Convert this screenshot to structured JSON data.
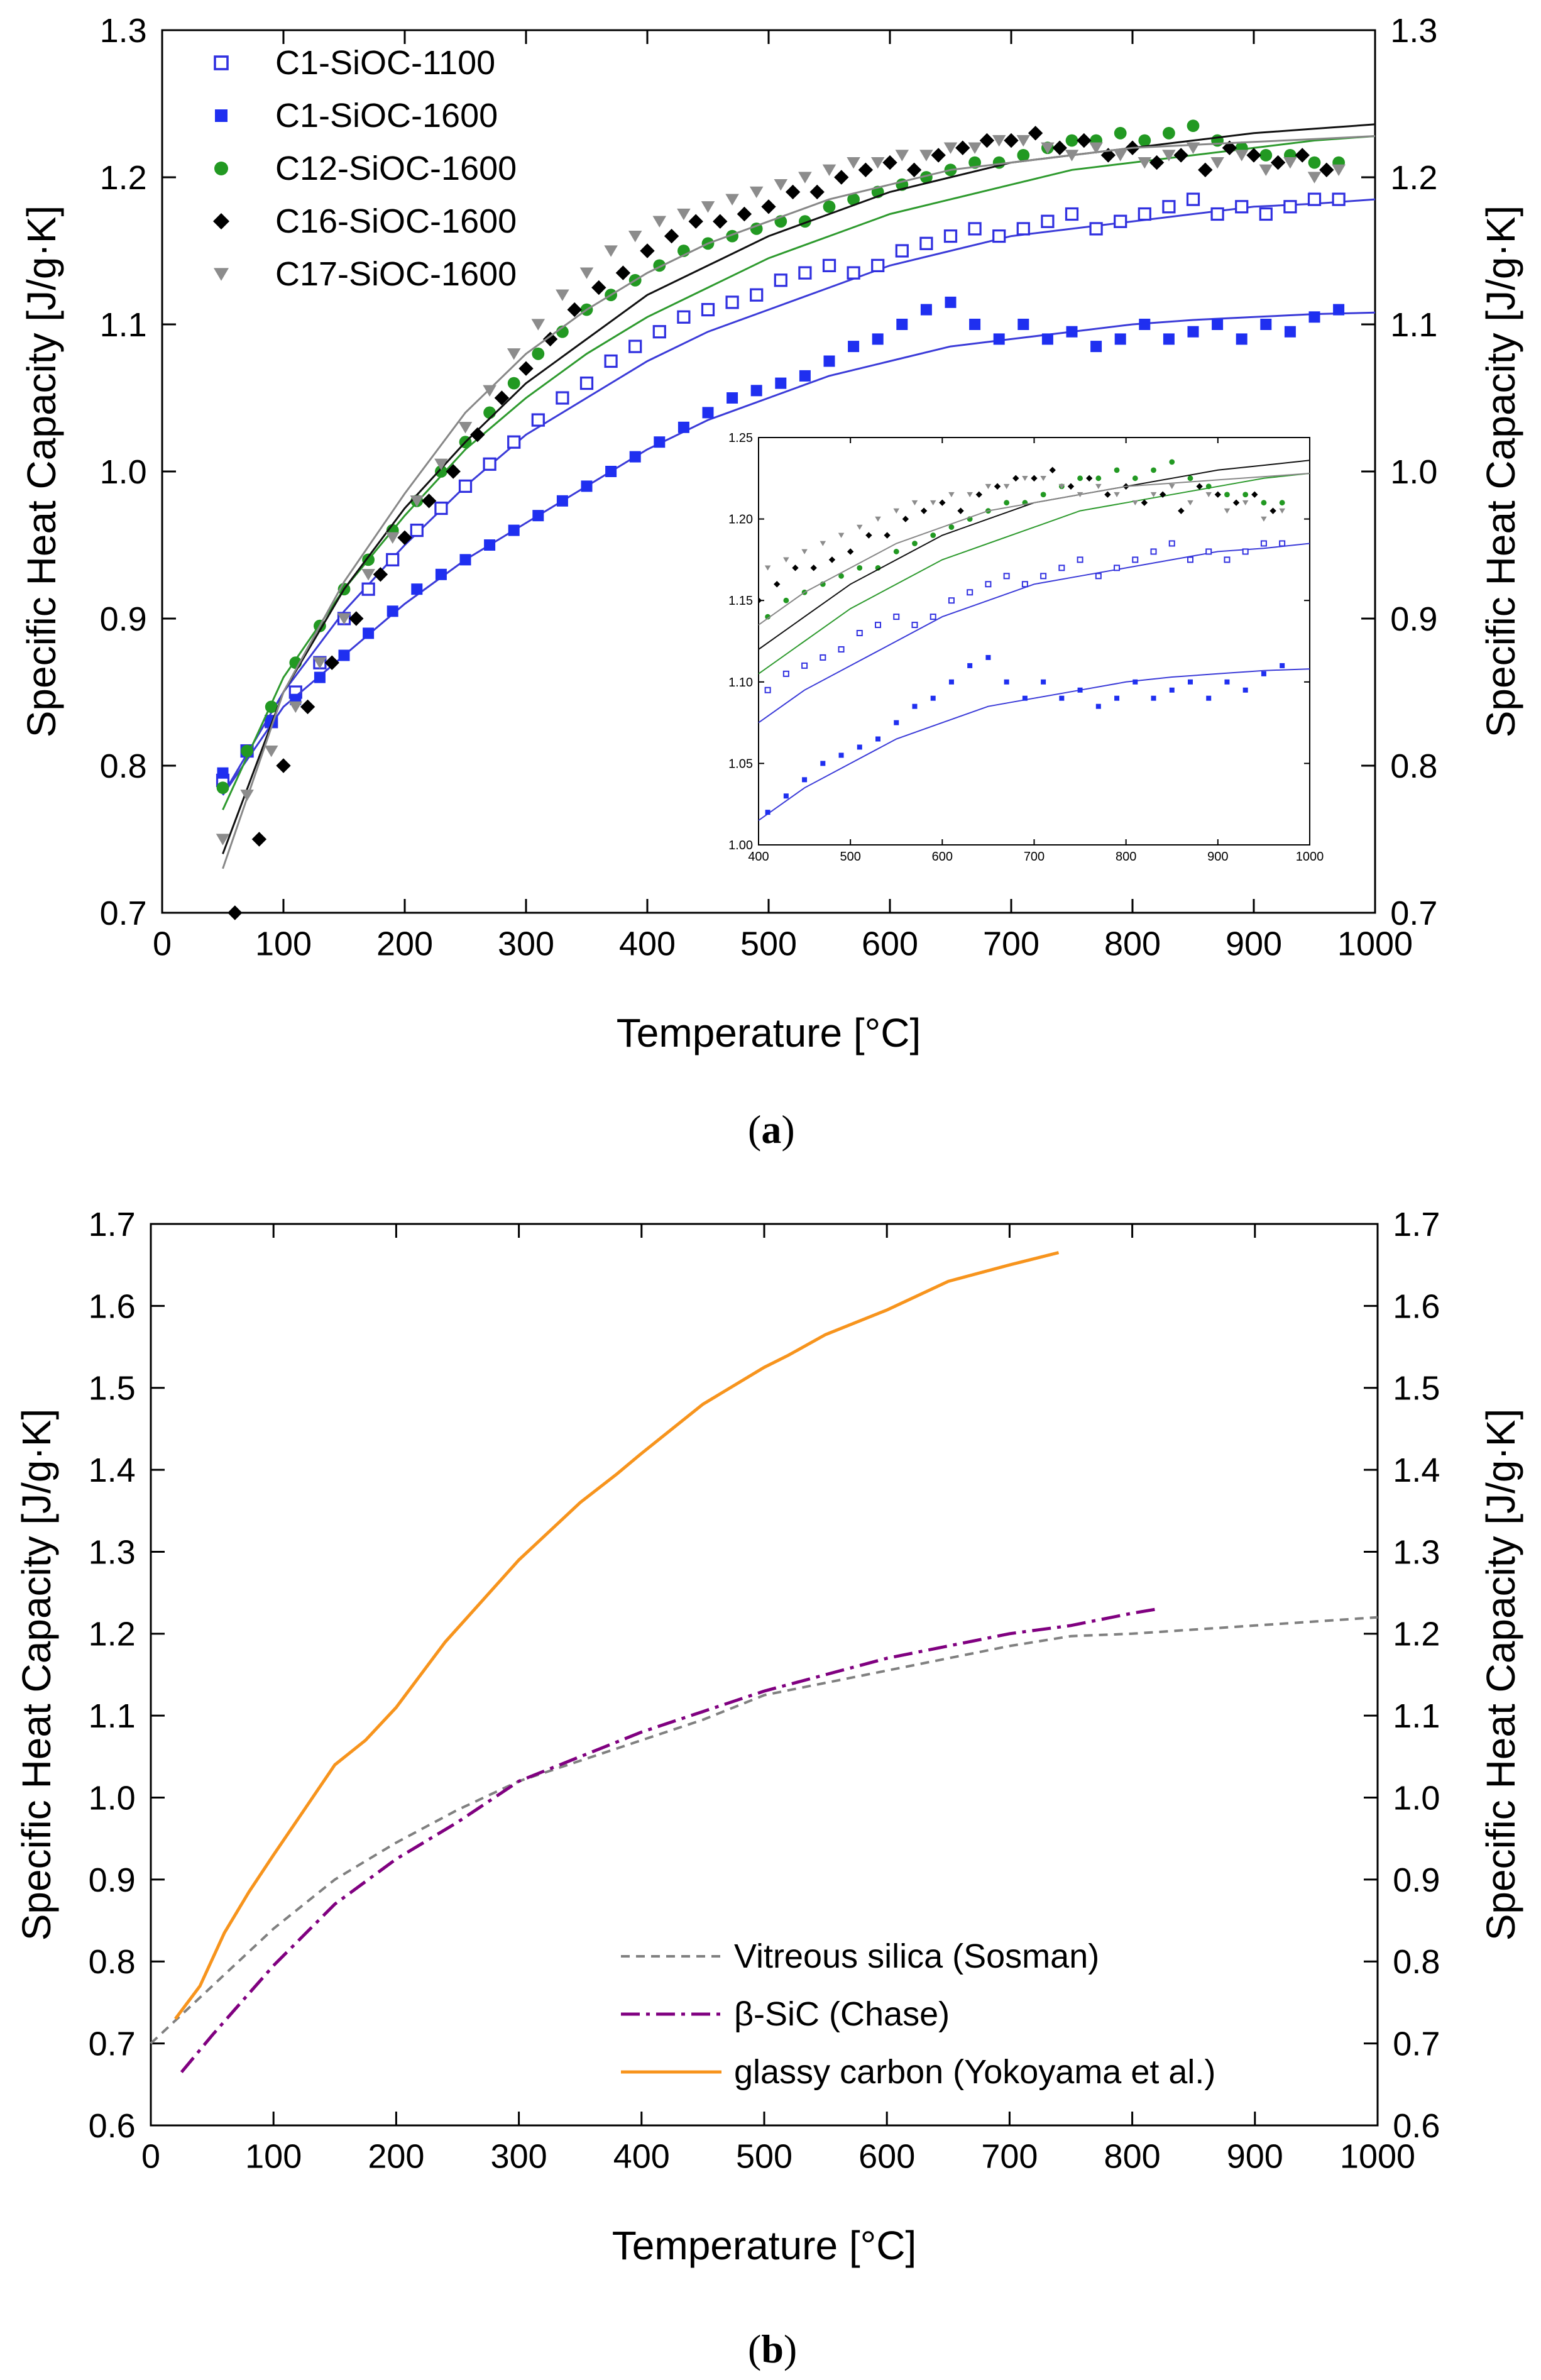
{
  "captions": {
    "a": "a",
    "b": "b"
  },
  "chart_data": [
    {
      "id": "a",
      "type": "scatter",
      "xlabel": "Temperature [°C]",
      "ylabel": "Specific Heat Capacity [J/g·K]",
      "xlim": [
        0,
        1000
      ],
      "ylim": [
        0.7,
        1.3
      ],
      "xticks": [
        0,
        100,
        200,
        300,
        400,
        500,
        600,
        700,
        800,
        900,
        1000
      ],
      "yticks": [
        0.7,
        0.8,
        0.9,
        1.0,
        1.1,
        1.2,
        1.3
      ],
      "ytick_labels": [
        "0.7",
        "0.8",
        "0.9",
        "1.0",
        "1.1",
        "1.2",
        "1.3"
      ],
      "legend_position": "top-left",
      "series": [
        {
          "name": "C1-SiOC-1100",
          "marker": "open-square",
          "color": "#3030e0",
          "fit_color": "#3b3bd8",
          "x": [
            50,
            70,
            90,
            110,
            130,
            150,
            170,
            190,
            210,
            230,
            250,
            270,
            290,
            310,
            330,
            350,
            370,
            390,
            410,
            430,
            450,
            470,
            490,
            510,
            530,
            550,
            570,
            590,
            610,
            630,
            650,
            670,
            690,
            710,
            730,
            750,
            770,
            790,
            810,
            830,
            850,
            870,
            890,
            910,
            930,
            950,
            970
          ],
          "y": [
            0.79,
            0.81,
            0.83,
            0.85,
            0.87,
            0.9,
            0.92,
            0.94,
            0.96,
            0.975,
            0.99,
            1.005,
            1.02,
            1.035,
            1.05,
            1.06,
            1.075,
            1.085,
            1.095,
            1.105,
            1.11,
            1.115,
            1.12,
            1.13,
            1.135,
            1.14,
            1.135,
            1.14,
            1.15,
            1.155,
            1.16,
            1.165,
            1.16,
            1.165,
            1.17,
            1.175,
            1.165,
            1.17,
            1.175,
            1.18,
            1.185,
            1.175,
            1.18,
            1.175,
            1.18,
            1.185,
            1.185
          ],
          "fit_x": [
            50,
            100,
            150,
            200,
            250,
            300,
            350,
            400,
            450,
            500,
            550,
            600,
            650,
            700,
            750,
            800,
            850,
            900,
            950,
            1000
          ],
          "fit_y": [
            0.78,
            0.85,
            0.905,
            0.95,
            0.99,
            1.025,
            1.05,
            1.075,
            1.095,
            1.11,
            1.125,
            1.14,
            1.15,
            1.16,
            1.165,
            1.17,
            1.175,
            1.18,
            1.182,
            1.185
          ]
        },
        {
          "name": "C1-SiOC-1600",
          "marker": "filled-square",
          "color": "#1f2ff0",
          "fit_color": "#3b3bd8",
          "x": [
            50,
            70,
            90,
            110,
            130,
            150,
            170,
            190,
            210,
            230,
            250,
            270,
            290,
            310,
            330,
            350,
            370,
            390,
            410,
            430,
            450,
            470,
            490,
            510,
            530,
            550,
            570,
            590,
            610,
            630,
            650,
            670,
            690,
            710,
            730,
            750,
            770,
            790,
            810,
            830,
            850,
            870,
            890,
            910,
            930,
            950,
            970
          ],
          "y": [
            0.795,
            0.81,
            0.83,
            0.845,
            0.86,
            0.875,
            0.89,
            0.905,
            0.92,
            0.93,
            0.94,
            0.95,
            0.96,
            0.97,
            0.98,
            0.99,
            1.0,
            1.01,
            1.02,
            1.03,
            1.04,
            1.05,
            1.055,
            1.06,
            1.065,
            1.075,
            1.085,
            1.09,
            1.1,
            1.11,
            1.115,
            1.1,
            1.09,
            1.1,
            1.09,
            1.095,
            1.085,
            1.09,
            1.1,
            1.09,
            1.095,
            1.1,
            1.09,
            1.1,
            1.095,
            1.105,
            1.11
          ],
          "fit_x": [
            50,
            100,
            150,
            200,
            250,
            300,
            350,
            400,
            450,
            500,
            550,
            600,
            650,
            700,
            750,
            800,
            850,
            900,
            950,
            1000
          ],
          "fit_y": [
            0.78,
            0.84,
            0.875,
            0.91,
            0.94,
            0.965,
            0.99,
            1.015,
            1.035,
            1.05,
            1.065,
            1.075,
            1.085,
            1.09,
            1.095,
            1.1,
            1.103,
            1.105,
            1.107,
            1.108
          ]
        },
        {
          "name": "C12-SiOC-1600",
          "marker": "filled-circle",
          "color": "#229922",
          "fit_color": "#2e9a2e",
          "x": [
            50,
            70,
            90,
            110,
            130,
            150,
            170,
            190,
            210,
            230,
            250,
            270,
            290,
            310,
            330,
            350,
            370,
            390,
            410,
            430,
            450,
            470,
            490,
            510,
            530,
            550,
            570,
            590,
            610,
            630,
            650,
            670,
            690,
            710,
            730,
            750,
            770,
            790,
            810,
            830,
            850,
            870,
            890,
            910,
            930,
            950,
            970
          ],
          "y": [
            0.785,
            0.81,
            0.84,
            0.87,
            0.895,
            0.92,
            0.94,
            0.96,
            0.98,
            1.0,
            1.02,
            1.04,
            1.06,
            1.08,
            1.095,
            1.11,
            1.12,
            1.13,
            1.14,
            1.15,
            1.155,
            1.16,
            1.165,
            1.17,
            1.17,
            1.18,
            1.185,
            1.19,
            1.195,
            1.2,
            1.205,
            1.21,
            1.21,
            1.215,
            1.22,
            1.225,
            1.225,
            1.23,
            1.225,
            1.23,
            1.235,
            1.225,
            1.22,
            1.215,
            1.215,
            1.21,
            1.21
          ],
          "fit_x": [
            50,
            100,
            150,
            200,
            250,
            300,
            350,
            400,
            450,
            500,
            550,
            600,
            650,
            700,
            750,
            800,
            850,
            900,
            950,
            1000
          ],
          "fit_y": [
            0.77,
            0.86,
            0.92,
            0.97,
            1.015,
            1.05,
            1.08,
            1.105,
            1.125,
            1.145,
            1.16,
            1.175,
            1.185,
            1.195,
            1.205,
            1.21,
            1.215,
            1.22,
            1.225,
            1.228
          ]
        },
        {
          "name": "C16-SiOC-1600",
          "marker": "filled-diamond",
          "color": "#000000",
          "fit_color": "#111111",
          "x": [
            60,
            80,
            100,
            120,
            140,
            160,
            180,
            200,
            220,
            240,
            260,
            280,
            300,
            320,
            340,
            360,
            380,
            400,
            420,
            440,
            460,
            480,
            500,
            520,
            540,
            560,
            580,
            600,
            620,
            640,
            660,
            680,
            700,
            720,
            740,
            760,
            780,
            800,
            820,
            840,
            860,
            880,
            900,
            920,
            940,
            960
          ],
          "y": [
            0.7,
            0.75,
            0.8,
            0.84,
            0.87,
            0.9,
            0.93,
            0.955,
            0.98,
            1.0,
            1.025,
            1.05,
            1.07,
            1.09,
            1.11,
            1.125,
            1.135,
            1.15,
            1.16,
            1.17,
            1.17,
            1.175,
            1.18,
            1.19,
            1.19,
            1.2,
            1.205,
            1.21,
            1.205,
            1.215,
            1.22,
            1.225,
            1.225,
            1.23,
            1.22,
            1.225,
            1.215,
            1.22,
            1.21,
            1.215,
            1.205,
            1.22,
            1.215,
            1.21,
            1.215,
            1.205
          ],
          "fit_x": [
            50,
            100,
            150,
            200,
            250,
            300,
            350,
            400,
            450,
            500,
            550,
            600,
            650,
            700,
            750,
            800,
            850,
            900,
            950,
            1000
          ],
          "fit_y": [
            0.74,
            0.85,
            0.92,
            0.975,
            1.02,
            1.06,
            1.09,
            1.12,
            1.14,
            1.16,
            1.175,
            1.19,
            1.2,
            1.21,
            1.215,
            1.22,
            1.225,
            1.23,
            1.233,
            1.236
          ]
        },
        {
          "name": "C17-SiOC-1600",
          "marker": "filled-triangle-down",
          "color": "#8c8c8c",
          "fit_color": "#888888",
          "x": [
            50,
            70,
            90,
            110,
            130,
            150,
            170,
            190,
            210,
            230,
            250,
            270,
            290,
            310,
            330,
            350,
            370,
            390,
            410,
            430,
            450,
            470,
            490,
            510,
            530,
            550,
            570,
            590,
            610,
            630,
            650,
            670,
            690,
            710,
            730,
            750,
            770,
            790,
            810,
            830,
            850,
            870,
            890,
            910,
            930,
            950,
            970
          ],
          "y": [
            0.75,
            0.78,
            0.81,
            0.84,
            0.87,
            0.9,
            0.93,
            0.955,
            0.98,
            1.005,
            1.03,
            1.055,
            1.08,
            1.1,
            1.12,
            1.135,
            1.15,
            1.16,
            1.17,
            1.175,
            1.18,
            1.185,
            1.19,
            1.195,
            1.2,
            1.205,
            1.21,
            1.21,
            1.215,
            1.215,
            1.22,
            1.22,
            1.225,
            1.225,
            1.22,
            1.215,
            1.22,
            1.215,
            1.21,
            1.215,
            1.22,
            1.21,
            1.215,
            1.205,
            1.21,
            1.2,
            1.205
          ],
          "fit_x": [
            50,
            100,
            150,
            200,
            250,
            300,
            350,
            400,
            450,
            500,
            550,
            600,
            650,
            700,
            750,
            800,
            850,
            900,
            950,
            1000
          ],
          "fit_y": [
            0.73,
            0.85,
            0.925,
            0.985,
            1.04,
            1.08,
            1.11,
            1.135,
            1.155,
            1.17,
            1.185,
            1.195,
            1.205,
            1.21,
            1.215,
            1.22,
            1.222,
            1.224,
            1.226,
            1.228
          ]
        }
      ],
      "inset": {
        "xlim": [
          400,
          1000
        ],
        "ylim": [
          1.0,
          1.25
        ],
        "xticks": [
          400,
          500,
          600,
          700,
          800,
          900,
          1000
        ],
        "yticks": [
          1.0,
          1.05,
          1.1,
          1.15,
          1.2,
          1.25
        ],
        "ytick_labels": [
          "1.00",
          "1.05",
          "1.10",
          "1.15",
          "1.20",
          "1.25"
        ]
      }
    },
    {
      "id": "b",
      "type": "line",
      "xlabel": "Temperature [°C]",
      "ylabel": "Specific Heat Capacity [J/g·K]",
      "xlim": [
        0,
        1000
      ],
      "ylim": [
        0.6,
        1.7
      ],
      "xticks": [
        0,
        100,
        200,
        300,
        400,
        500,
        600,
        700,
        800,
        900,
        1000
      ],
      "yticks": [
        0.6,
        0.7,
        0.8,
        0.9,
        1.0,
        1.1,
        1.2,
        1.3,
        1.4,
        1.5,
        1.6,
        1.7
      ],
      "ytick_labels": [
        "0.6",
        "0.7",
        "0.8",
        "0.9",
        "1.0",
        "1.1",
        "1.2",
        "1.3",
        "1.4",
        "1.5",
        "1.6",
        "1.7"
      ],
      "legend_position": "bottom-right",
      "series": [
        {
          "name": "Vitreous silica (Sosman)",
          "style": "dashed",
          "color": "#808080",
          "x": [
            0,
            50,
            100,
            150,
            200,
            250,
            300,
            350,
            400,
            450,
            500,
            550,
            600,
            650,
            700,
            750,
            800,
            850,
            900,
            950,
            1000
          ],
          "y": [
            0.7,
            0.77,
            0.84,
            0.9,
            0.945,
            0.985,
            1.02,
            1.045,
            1.07,
            1.095,
            1.125,
            1.14,
            1.155,
            1.17,
            1.185,
            1.197,
            1.2,
            1.205,
            1.21,
            1.215,
            1.22
          ]
        },
        {
          "name": "β-SiC (Chase)",
          "style": "dash-dot",
          "color": "#800080",
          "x": [
            25,
            50,
            100,
            150,
            200,
            250,
            300,
            350,
            400,
            450,
            500,
            550,
            600,
            650,
            700,
            750,
            800,
            820
          ],
          "y": [
            0.665,
            0.71,
            0.795,
            0.87,
            0.925,
            0.97,
            1.02,
            1.05,
            1.08,
            1.105,
            1.13,
            1.15,
            1.17,
            1.185,
            1.2,
            1.21,
            1.225,
            1.23
          ]
        },
        {
          "name": "glassy carbon (Yokoyama et al.)",
          "style": "solid",
          "color": "#f7941d",
          "x": [
            20,
            40,
            60,
            80,
            100,
            125,
            150,
            175,
            200,
            240,
            300,
            350,
            380,
            400,
            450,
            500,
            520,
            550,
            600,
            650,
            700,
            740
          ],
          "y": [
            0.73,
            0.77,
            0.835,
            0.885,
            0.93,
            0.985,
            1.04,
            1.07,
            1.11,
            1.19,
            1.29,
            1.36,
            1.395,
            1.42,
            1.48,
            1.525,
            1.54,
            1.565,
            1.595,
            1.63,
            1.65,
            1.665
          ]
        }
      ]
    }
  ]
}
